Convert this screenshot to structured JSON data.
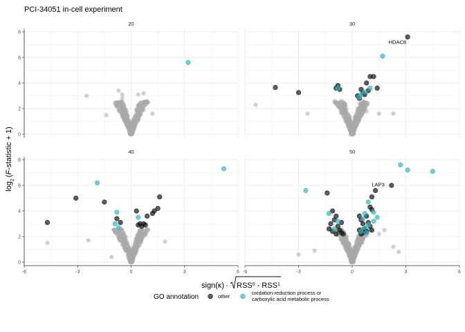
{
  "title": "PCI-34051 in-cell experiment",
  "colors": {
    "other": "#1a1a1a",
    "redox": "#33b8c2",
    "background_points": "#a9a9a9",
    "grid": "#ebebeb",
    "axis": "#333333"
  },
  "chart_data": {
    "type": "scatter",
    "facets": [
      "20",
      "30",
      "40",
      "50"
    ],
    "xlabel_parts": {
      "sign": "sign(κ)",
      "dot": "·",
      "rss0": "RSS",
      "sup0": "0",
      "minus": " - RSS",
      "sup1": "1"
    },
    "ylabel_parts": {
      "log": "log",
      "sub": "2",
      "rest_open": "(",
      "F": "F",
      "rest": "-statistic + 1)"
    },
    "xlim": [
      -6,
      6
    ],
    "ylim": [
      0,
      8
    ],
    "x_ticks": [
      "-6",
      "-3",
      "0",
      "3",
      "6"
    ],
    "y_ticks": [
      "0",
      "2",
      "4",
      "6",
      "8"
    ],
    "grid": true,
    "legend": {
      "title": "GO annotation",
      "position": "bottom",
      "items": [
        {
          "key": "other",
          "label_lines": [
            "other"
          ]
        },
        {
          "key": "redox",
          "label_lines": [
            "oxidation-reduction process or",
            "carboxylic acid metabolic process"
          ]
        }
      ]
    },
    "panels": [
      {
        "facet": "20",
        "background_extra": [
          [
            -2.5,
            3.0
          ],
          [
            -0.7,
            3.4
          ],
          [
            -0.5,
            3.1
          ],
          [
            0.4,
            3.1
          ],
          [
            0.7,
            3.2
          ],
          [
            -1.4,
            1.5
          ],
          [
            1.2,
            1.6
          ],
          [
            -0.5,
            2.8
          ]
        ],
        "highlight": [
          {
            "x": 3.2,
            "y": 5.6,
            "group": "redox"
          }
        ],
        "labels": []
      },
      {
        "facet": "30",
        "background_extra": [
          [
            -5.4,
            2.3
          ],
          [
            -2.5,
            1.6
          ],
          [
            1.5,
            1.6
          ],
          [
            2.3,
            1.6
          ],
          [
            0.8,
            1.8
          ],
          [
            -0.4,
            2.4
          ],
          [
            0.6,
            2.6
          ]
        ],
        "highlight": [
          {
            "x": 3.1,
            "y": 7.6,
            "group": "other"
          },
          {
            "x": 1.7,
            "y": 6.1,
            "group": "redox"
          },
          {
            "x": -4.3,
            "y": 3.65,
            "group": "other"
          },
          {
            "x": -3.0,
            "y": 3.25,
            "group": "other"
          },
          {
            "x": 1.0,
            "y": 4.5,
            "group": "other"
          },
          {
            "x": 1.2,
            "y": 4.5,
            "group": "other"
          },
          {
            "x": 0.8,
            "y": 4.0,
            "group": "other"
          },
          {
            "x": 1.4,
            "y": 3.6,
            "group": "other"
          },
          {
            "x": -0.8,
            "y": 3.8,
            "group": "other"
          },
          {
            "x": -0.7,
            "y": 3.5,
            "group": "other"
          },
          {
            "x": -0.9,
            "y": 3.6,
            "group": "other"
          },
          {
            "x": 0.5,
            "y": 3.5,
            "group": "other"
          },
          {
            "x": 0.6,
            "y": 3.2,
            "group": "other"
          },
          {
            "x": 0.9,
            "y": 3.4,
            "group": "other"
          },
          {
            "x": 0.3,
            "y": 3.0,
            "group": "other"
          },
          {
            "x": 0.4,
            "y": 2.8,
            "group": "other"
          },
          {
            "x": 0.7,
            "y": 3.1,
            "group": "other"
          },
          {
            "x": -0.8,
            "y": 3.6,
            "group": "redox"
          },
          {
            "x": 0.5,
            "y": 3.1,
            "group": "redox"
          },
          {
            "x": 1.0,
            "y": 3.6,
            "group": "redox"
          },
          {
            "x": 0.7,
            "y": 3.3,
            "group": "redox"
          },
          {
            "x": 0.4,
            "y": 2.9,
            "group": "redox"
          }
        ],
        "labels": [
          {
            "text": "HDAC8",
            "x": 3.1,
            "y": 7.6,
            "anchor": "end",
            "dx": -2,
            "dy": 10
          }
        ]
      },
      {
        "facet": "40",
        "background_extra": [
          [
            -4.7,
            1.5
          ],
          [
            -2.4,
            1.7
          ],
          [
            -1.1,
            0.4
          ],
          [
            1.9,
            1.6
          ],
          [
            -0.6,
            2.4
          ],
          [
            0.6,
            2.4
          ]
        ],
        "highlight": [
          {
            "x": 5.2,
            "y": 7.3,
            "group": "redox"
          },
          {
            "x": -1.9,
            "y": 6.2,
            "group": "redox"
          },
          {
            "x": -3.1,
            "y": 5.0,
            "group": "other"
          },
          {
            "x": -1.5,
            "y": 4.7,
            "group": "other"
          },
          {
            "x": -4.7,
            "y": 3.1,
            "group": "other"
          },
          {
            "x": 1.6,
            "y": 5.1,
            "group": "other"
          },
          {
            "x": 1.5,
            "y": 4.2,
            "group": "other"
          },
          {
            "x": 1.3,
            "y": 4.0,
            "group": "other"
          },
          {
            "x": 0.3,
            "y": 4.0,
            "group": "other"
          },
          {
            "x": 0.9,
            "y": 3.6,
            "group": "other"
          },
          {
            "x": 1.2,
            "y": 3.8,
            "group": "other"
          },
          {
            "x": -0.8,
            "y": 3.4,
            "group": "other"
          },
          {
            "x": -0.6,
            "y": 3.1,
            "group": "other"
          },
          {
            "x": 0.4,
            "y": 2.9,
            "group": "other"
          },
          {
            "x": 0.6,
            "y": 2.8,
            "group": "other"
          },
          {
            "x": 0.8,
            "y": 2.9,
            "group": "other"
          },
          {
            "x": 0.5,
            "y": 3.0,
            "group": "other"
          },
          {
            "x": 0.7,
            "y": 3.0,
            "group": "other"
          },
          {
            "x": -0.8,
            "y": 3.9,
            "group": "redox"
          },
          {
            "x": 0.4,
            "y": 3.5,
            "group": "redox"
          },
          {
            "x": -0.9,
            "y": 3.0,
            "group": "redox"
          },
          {
            "x": -0.7,
            "y": 2.7,
            "group": "redox"
          }
        ],
        "labels": []
      },
      {
        "facet": "50",
        "background_extra": [
          [
            -3.0,
            0.6
          ],
          [
            -2.1,
            0.9
          ],
          [
            2.3,
            1.2
          ],
          [
            2.6,
            0.8
          ],
          [
            -1.2,
            2.6
          ],
          [
            1.8,
            2.5
          ],
          [
            1.5,
            2.2
          ]
        ],
        "highlight": [
          {
            "x": 2.7,
            "y": 7.6,
            "group": "redox"
          },
          {
            "x": 3.1,
            "y": 7.2,
            "group": "redox"
          },
          {
            "x": 4.5,
            "y": 7.1,
            "group": "redox"
          },
          {
            "x": 2.2,
            "y": 6.0,
            "group": "other"
          },
          {
            "x": 1.3,
            "y": 5.6,
            "group": "other"
          },
          {
            "x": -2.6,
            "y": 5.6,
            "group": "redox"
          },
          {
            "x": -1.4,
            "y": 5.4,
            "group": "other"
          },
          {
            "x": 1.1,
            "y": 5.1,
            "group": "other"
          },
          {
            "x": 0.9,
            "y": 4.7,
            "group": "redox"
          },
          {
            "x": 1.0,
            "y": 4.3,
            "group": "other"
          },
          {
            "x": 1.1,
            "y": 4.1,
            "group": "other"
          },
          {
            "x": 1.2,
            "y": 3.9,
            "group": "redox"
          },
          {
            "x": 0.7,
            "y": 3.8,
            "group": "redox"
          },
          {
            "x": 0.4,
            "y": 3.6,
            "group": "other"
          },
          {
            "x": 1.4,
            "y": 3.5,
            "group": "redox"
          },
          {
            "x": 0.8,
            "y": 3.6,
            "group": "other"
          },
          {
            "x": -1.1,
            "y": 4.0,
            "group": "other"
          },
          {
            "x": -0.9,
            "y": 3.6,
            "group": "other"
          },
          {
            "x": -1.0,
            "y": 3.3,
            "group": "other"
          },
          {
            "x": -0.6,
            "y": 3.1,
            "group": "other"
          },
          {
            "x": -1.2,
            "y": 3.0,
            "group": "other"
          },
          {
            "x": -0.8,
            "y": 2.8,
            "group": "other"
          },
          {
            "x": -1.3,
            "y": 2.6,
            "group": "other"
          },
          {
            "x": -0.7,
            "y": 2.5,
            "group": "other"
          },
          {
            "x": -1.1,
            "y": 2.4,
            "group": "other"
          },
          {
            "x": -0.6,
            "y": 2.3,
            "group": "other"
          },
          {
            "x": -0.9,
            "y": 2.2,
            "group": "other"
          },
          {
            "x": -0.5,
            "y": 2.2,
            "group": "other"
          },
          {
            "x": -1.3,
            "y": 3.8,
            "group": "redox"
          },
          {
            "x": -0.8,
            "y": 3.2,
            "group": "redox"
          },
          {
            "x": -1.0,
            "y": 2.6,
            "group": "redox"
          },
          {
            "x": 0.5,
            "y": 3.3,
            "group": "other"
          },
          {
            "x": 0.6,
            "y": 3.0,
            "group": "other"
          },
          {
            "x": 0.9,
            "y": 3.1,
            "group": "other"
          },
          {
            "x": 1.0,
            "y": 2.8,
            "group": "other"
          },
          {
            "x": 0.7,
            "y": 2.6,
            "group": "other"
          },
          {
            "x": 0.4,
            "y": 2.5,
            "group": "other"
          },
          {
            "x": 0.6,
            "y": 2.3,
            "group": "other"
          },
          {
            "x": 0.8,
            "y": 2.4,
            "group": "other"
          },
          {
            "x": 1.1,
            "y": 2.5,
            "group": "other"
          },
          {
            "x": 0.5,
            "y": 2.2,
            "group": "other"
          },
          {
            "x": 0.6,
            "y": 3.4,
            "group": "redox"
          },
          {
            "x": 0.9,
            "y": 2.9,
            "group": "redox"
          },
          {
            "x": 0.7,
            "y": 2.7,
            "group": "redox"
          },
          {
            "x": 0.5,
            "y": 2.4,
            "group": "redox"
          },
          {
            "x": 1.2,
            "y": 3.2,
            "group": "redox"
          },
          {
            "x": 0.8,
            "y": 2.3,
            "group": "redox"
          }
        ],
        "labels": [
          {
            "text": "LAP3",
            "x": 1.3,
            "y": 5.6,
            "anchor": "middle",
            "dx": 4,
            "dy": -6
          }
        ]
      }
    ]
  }
}
